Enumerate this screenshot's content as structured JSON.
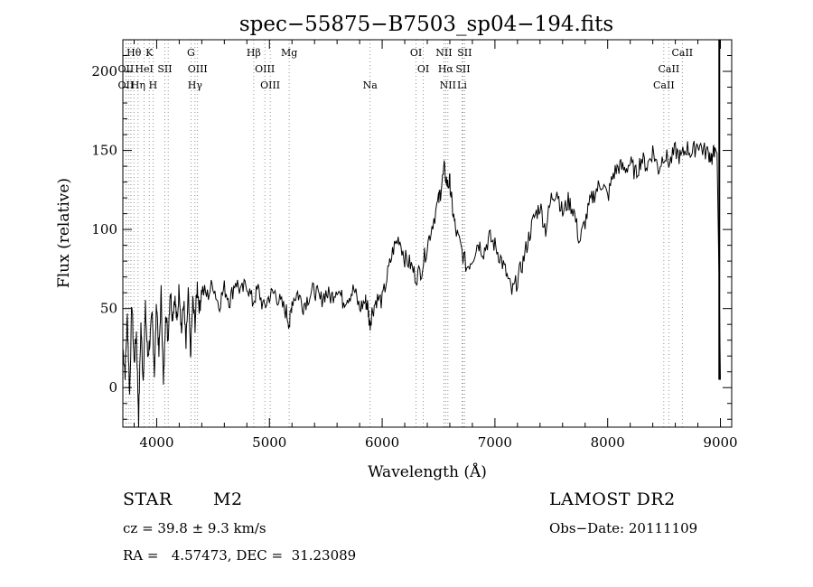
{
  "chart_data": {
    "type": "line",
    "title": "spec−55875−B7503_sp04−194.fits",
    "xlabel": "Wavelength (Å)",
    "ylabel": "Flux (relative)",
    "xlim": [
      3700,
      9100
    ],
    "ylim": [
      -25,
      220
    ],
    "xticks": [
      4000,
      5000,
      6000,
      7000,
      8000,
      9000
    ],
    "yticks": [
      0,
      50,
      100,
      150,
      200
    ],
    "grid": false,
    "series": [
      {
        "x": [
          3700,
          3720,
          3740,
          3760,
          3780,
          3800,
          3820,
          3840,
          3860,
          3880,
          3900,
          3920,
          3940,
          3960,
          3980,
          4000,
          4020,
          4040,
          4060,
          4080,
          4100,
          4120,
          4140,
          4160,
          4180,
          4200,
          4220,
          4240,
          4260,
          4280,
          4300,
          4320,
          4340,
          4360,
          4380,
          4400,
          4450,
          4500,
          4550,
          4600,
          4650,
          4700,
          4750,
          4800,
          4850,
          4900,
          4950,
          5000,
          5050,
          5100,
          5150,
          5180,
          5200,
          5250,
          5300,
          5350,
          5400,
          5450,
          5500,
          5550,
          5600,
          5650,
          5700,
          5750,
          5800,
          5850,
          5870,
          5890,
          5910,
          5950,
          6000,
          6050,
          6100,
          6150,
          6200,
          6250,
          6300,
          6350,
          6400,
          6450,
          6500,
          6520,
          6550,
          6580,
          6600,
          6620,
          6650,
          6700,
          6750,
          6800,
          6850,
          6900,
          6950,
          7000,
          7050,
          7100,
          7150,
          7200,
          7250,
          7300,
          7350,
          7400,
          7450,
          7500,
          7550,
          7600,
          7650,
          7700,
          7750,
          7800,
          7850,
          7900,
          7950,
          8000,
          8050,
          8100,
          8150,
          8200,
          8250,
          8300,
          8350,
          8400,
          8450,
          8500,
          8550,
          8600,
          8650,
          8700,
          8750,
          8800,
          8850,
          8900,
          8930,
          8950,
          8970,
          8980,
          8990,
          9000
        ],
        "y": [
          25,
          10,
          45,
          -5,
          55,
          15,
          35,
          -20,
          40,
          5,
          50,
          20,
          30,
          45,
          10,
          55,
          20,
          60,
          0,
          50,
          30,
          62,
          45,
          58,
          40,
          65,
          35,
          55,
          25,
          60,
          20,
          55,
          40,
          65,
          50,
          62,
          58,
          66,
          52,
          63,
          55,
          68,
          60,
          66,
          54,
          62,
          50,
          58,
          60,
          53,
          48,
          40,
          55,
          60,
          52,
          58,
          62,
          55,
          60,
          57,
          64,
          55,
          58,
          62,
          50,
          55,
          52,
          40,
          48,
          56,
          55,
          72,
          88,
          95,
          82,
          78,
          70,
          75,
          90,
          105,
          118,
          125,
          138,
          128,
          130,
          115,
          100,
          88,
          76,
          82,
          92,
          86,
          95,
          90,
          82,
          72,
          60,
          68,
          80,
          95,
          108,
          115,
          100,
          120,
          125,
          110,
          118,
          112,
          92,
          105,
          118,
          125,
          130,
          120,
          135,
          140,
          138,
          142,
          135,
          145,
          140,
          150,
          138,
          148,
          142,
          150,
          145,
          152,
          148,
          155,
          150,
          148,
          145,
          152,
          148,
          105,
          60,
          5
        ]
      }
    ],
    "annotations": [
      {
        "label": "Hθ",
        "x": 3798
      },
      {
        "label": "K",
        "x": 3934
      },
      {
        "label": "G",
        "x": 4304
      },
      {
        "label": "Hβ",
        "x": 4861
      },
      {
        "label": "Mg",
        "x": 5175
      },
      {
        "label": "OI",
        "x": 6300
      },
      {
        "label": "NII",
        "x": 6548
      },
      {
        "label": "SII",
        "x": 6731
      },
      {
        "label": "CaII",
        "x": 8662
      },
      {
        "label": "OII",
        "x": 3727
      },
      {
        "label": "HeI",
        "x": 3889
      },
      {
        "label": "SII",
        "x": 4072
      },
      {
        "label": "OIII",
        "x": 4363
      },
      {
        "label": "OIII",
        "x": 4959
      },
      {
        "label": "OI",
        "x": 6364
      },
      {
        "label": "Hα",
        "x": 6563
      },
      {
        "label": "SII",
        "x": 6716
      },
      {
        "label": "CaII",
        "x": 8542
      },
      {
        "label": "OII",
        "x": 3727
      },
      {
        "label": "Hη",
        "x": 3835
      },
      {
        "label": "H",
        "x": 3968
      },
      {
        "label": "Hγ",
        "x": 4340
      },
      {
        "label": "OIII",
        "x": 5007
      },
      {
        "label": "Na",
        "x": 5893
      },
      {
        "label": "NII",
        "x": 6583
      },
      {
        "label": "Li",
        "x": 6708
      },
      {
        "label": "CaII",
        "x": 8498
      }
    ],
    "line_markers": [
      3727,
      3750,
      3771,
      3798,
      3835,
      3889,
      3934,
      3968,
      4072,
      4102,
      4304,
      4340,
      4363,
      4861,
      4959,
      5007,
      5175,
      5893,
      6300,
      6364,
      6548,
      6563,
      6583,
      6708,
      6716,
      6731,
      8498,
      8542,
      8662
    ]
  },
  "info": {
    "object_class": "STAR",
    "subclass": "M2",
    "survey": "LAMOST DR2",
    "redshift": "cz = 39.8 ± 9.3 km/s",
    "obs_date": "Obs−Date: 20111109",
    "coords": "RA =   4.57473, DEC =  31.23089"
  }
}
